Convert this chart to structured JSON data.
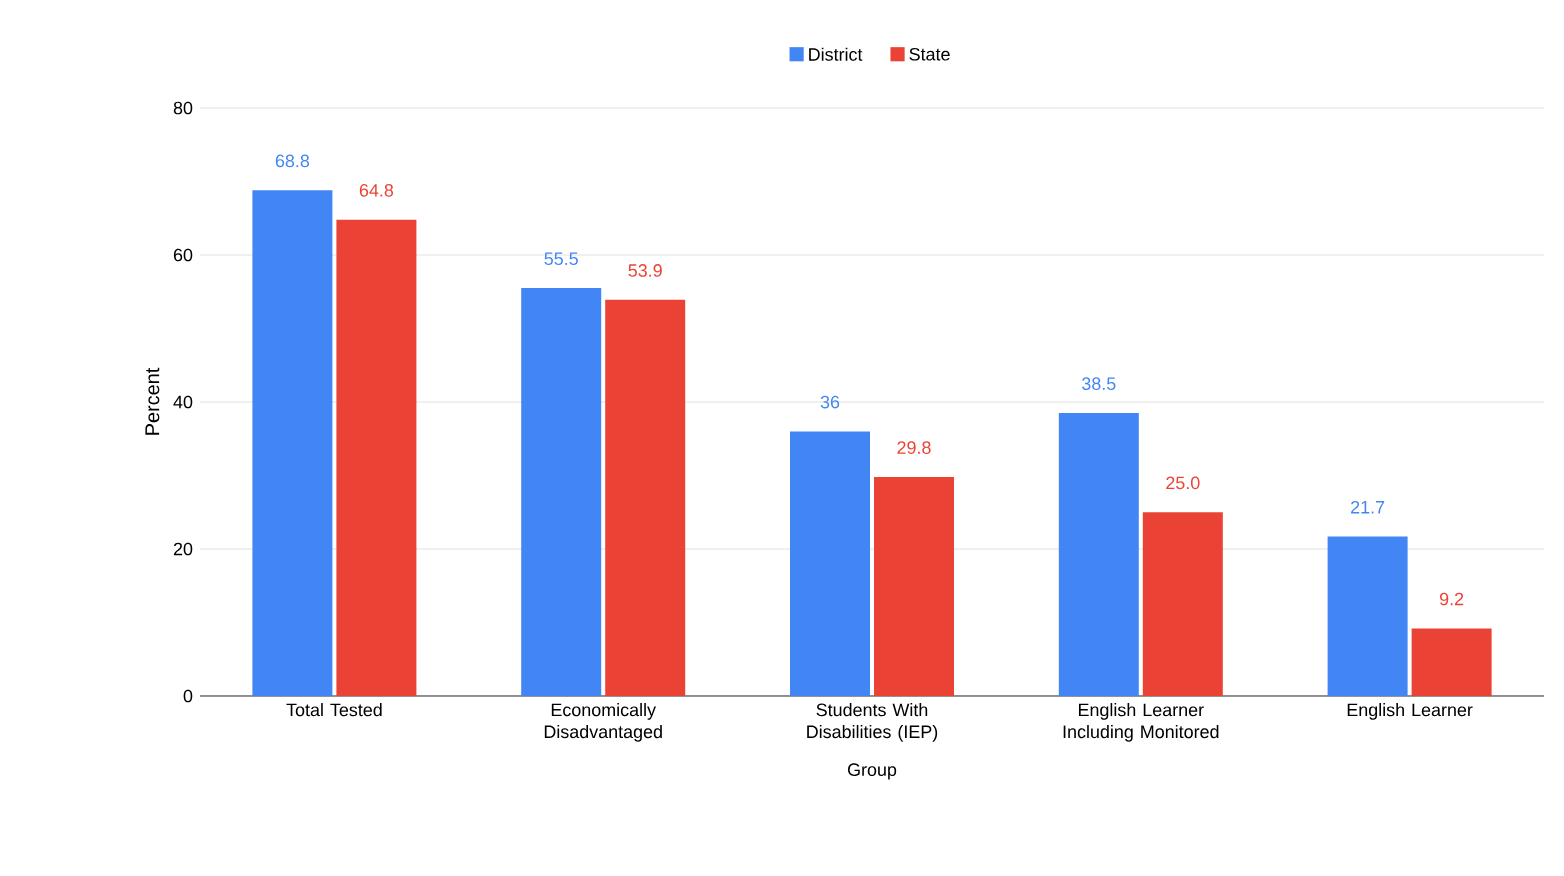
{
  "chart_data": {
    "type": "bar",
    "xlabel": "Group",
    "ylabel": "Percent",
    "categories": [
      "Total Tested",
      "Economically Disadvantaged",
      "Students With Disabilities (IEP)",
      "English Learner Including Monitored",
      "English Learner"
    ],
    "series": [
      {
        "name": "District",
        "color": "#4285f4",
        "values": [
          68.8,
          55.5,
          36,
          38.5,
          21.7
        ],
        "value_labels": [
          "68.8",
          "55.5",
          "36",
          "38.5",
          "21.7"
        ]
      },
      {
        "name": "State",
        "color": "#ea4335",
        "values": [
          64.8,
          53.9,
          29.8,
          25.0,
          9.2
        ],
        "value_labels": [
          "64.8",
          "53.9",
          "29.8",
          "25.0",
          "9.2"
        ]
      }
    ],
    "ylim": [
      0,
      80
    ],
    "yticks": [
      0,
      20,
      40,
      60,
      80
    ],
    "grid": "y",
    "legend": "top"
  }
}
